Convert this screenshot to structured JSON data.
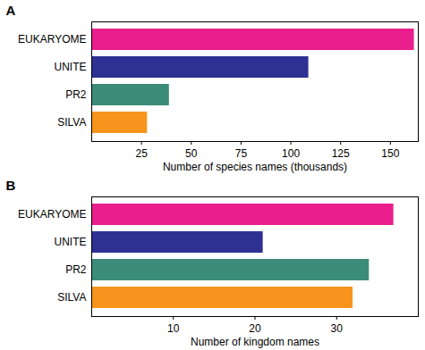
{
  "chart_data": [
    {
      "type": "bar",
      "title": "A",
      "orientation": "horizontal",
      "categories": [
        "EUKARYOME",
        "UNITE",
        "PR2",
        "SILVA"
      ],
      "values": [
        162,
        109,
        39,
        28
      ],
      "colors": [
        "#ea1e8c",
        "#2e3192",
        "#3b8c78",
        "#f7941d"
      ],
      "x_label": "Number of species names (thousands)",
      "xlim": [
        0,
        164
      ],
      "xticks": [
        25,
        50,
        75,
        100,
        125,
        150
      ]
    },
    {
      "type": "bar",
      "title": "B",
      "orientation": "horizontal",
      "categories": [
        "EUKARYOME",
        "UNITE",
        "PR2",
        "SILVA"
      ],
      "values": [
        37,
        21,
        34,
        32
      ],
      "colors": [
        "#ea1e8c",
        "#2e3192",
        "#3b8c78",
        "#f7941d"
      ],
      "x_label": "Number of kingdom names",
      "xlim": [
        0,
        40
      ],
      "xticks": [
        10,
        20,
        30
      ]
    }
  ]
}
